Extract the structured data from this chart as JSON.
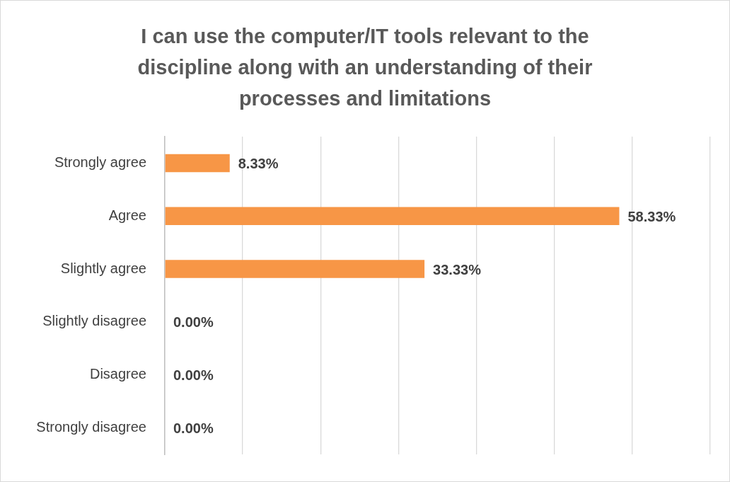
{
  "chart_data": {
    "type": "bar",
    "orientation": "horizontal",
    "title": "I can use the computer/IT tools relevant to the discipline along with an understanding of their processes and limitations",
    "categories": [
      "Strongly agree",
      "Agree",
      "Slightly agree",
      "Slightly disagree",
      "Disagree",
      "Strongly disagree"
    ],
    "values": [
      8.33,
      58.33,
      33.33,
      0,
      0,
      0
    ],
    "value_labels": [
      "8.33%",
      "58.33%",
      "33.33%",
      "0.00%",
      "0.00%",
      "0.00%"
    ],
    "color": "#f79646",
    "xlim": [
      0,
      70
    ],
    "xticks": [
      {
        "value": 0,
        "label": null
      },
      {
        "value": 10,
        "label": null
      },
      {
        "value": 20,
        "label": null
      },
      {
        "value": 30,
        "label": null
      },
      {
        "value": 40,
        "label": null
      },
      {
        "value": 50,
        "label": null
      },
      {
        "value": 60,
        "label": null
      },
      {
        "value": 70,
        "label": null
      }
    ],
    "tick_labels": "y",
    "grid": "x",
    "legend": false
  }
}
